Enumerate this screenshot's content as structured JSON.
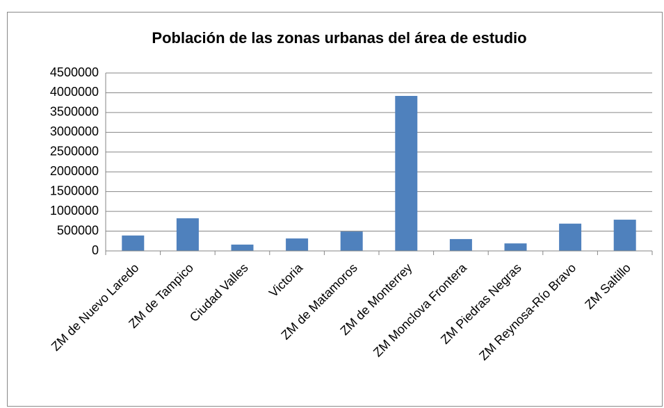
{
  "chart_data": {
    "type": "bar",
    "title": "Población de las zonas urbanas del área de estudio",
    "categories": [
      "ZM de Nuevo Laredo",
      "ZM de Tampico",
      "Ciudad Valles",
      "Victoria",
      "ZM de Matamoros",
      "ZM de Monterrey",
      "ZM Monclova Frontera",
      "ZM Piedras Negras",
      "ZM Reynosa-Río Bravo",
      "ZM Saltillo"
    ],
    "values": [
      390000,
      825000,
      160000,
      315000,
      490000,
      3920000,
      300000,
      190000,
      690000,
      790000
    ],
    "color": "#4f81bd",
    "ylim": [
      0,
      4500000
    ],
    "yticks": [
      0,
      500000,
      1000000,
      1500000,
      2000000,
      2500000,
      3000000,
      3500000,
      4000000,
      4500000
    ],
    "grid": true
  }
}
